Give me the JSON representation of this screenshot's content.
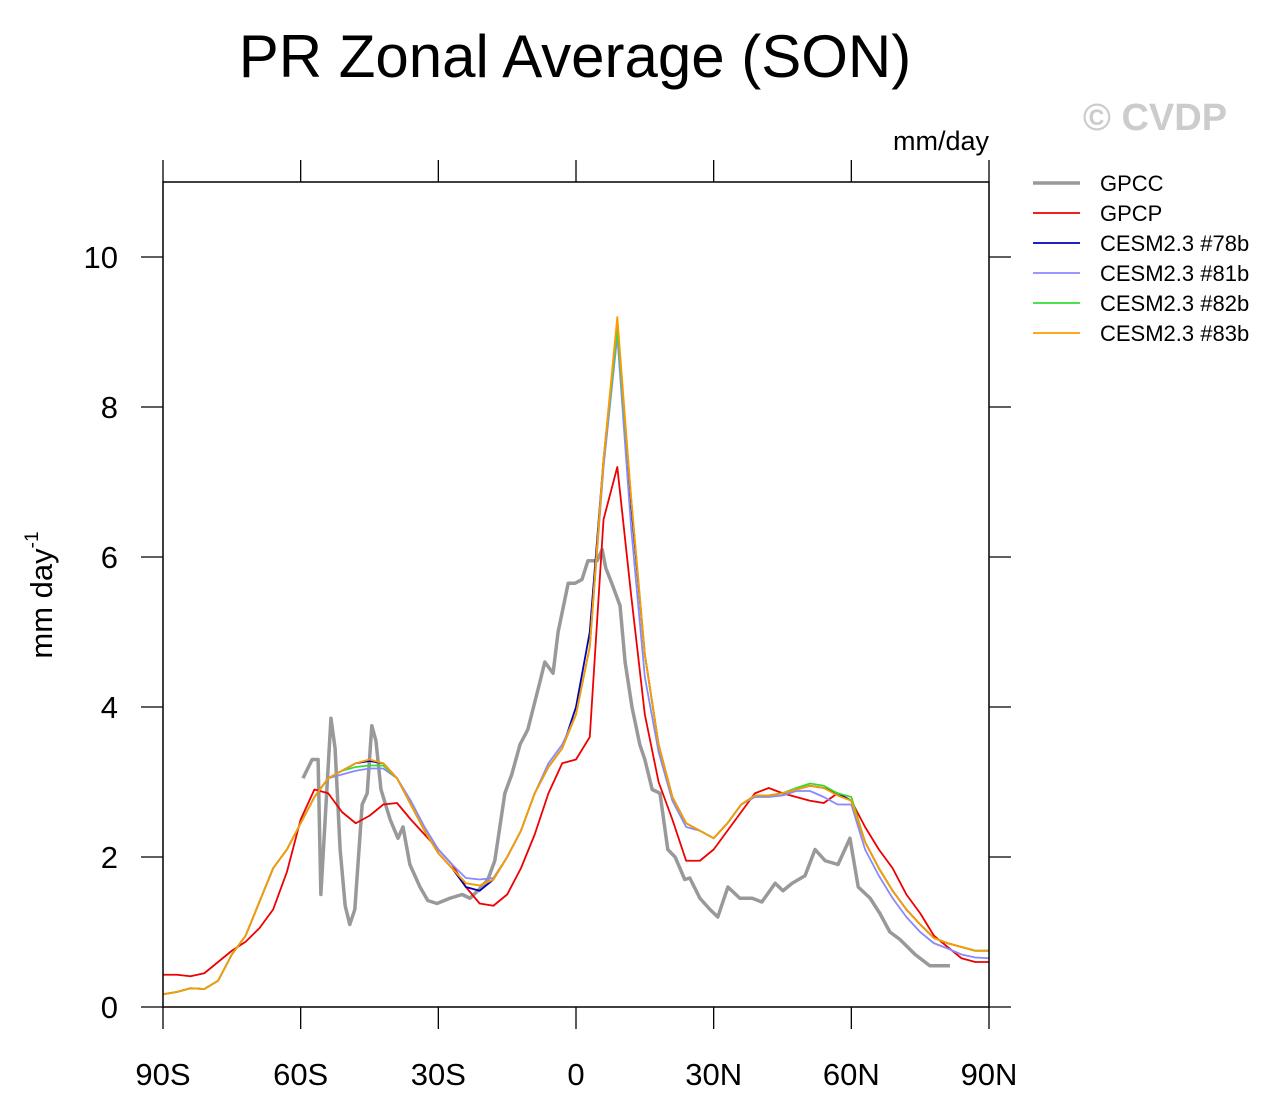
{
  "chart_data": {
    "type": "line",
    "title": "PR Zonal Average (SON)",
    "watermark": "© CVDP",
    "units_label": "mm/day",
    "y_label": "mm day",
    "y_label_exponent": "-1",
    "x": [
      -90,
      -87,
      -84,
      -81,
      -78,
      -75,
      -72,
      -69,
      -66,
      -63,
      -60,
      -57,
      -54,
      -51,
      -48,
      -45,
      -42,
      -39,
      -36,
      -33,
      -30,
      -27,
      -24,
      -21,
      -18,
      -15,
      -12,
      -9,
      -6,
      -3,
      0,
      3,
      6,
      9,
      12,
      15,
      18,
      21,
      24,
      27,
      30,
      33,
      36,
      39,
      42,
      45,
      48,
      51,
      54,
      57,
      60,
      63,
      66,
      69,
      72,
      75,
      78,
      81,
      84,
      87,
      90
    ],
    "xlim": [
      -90,
      90
    ],
    "xticks": [
      {
        "value": -90,
        "label": "90S"
      },
      {
        "value": -60,
        "label": "60S"
      },
      {
        "value": -30,
        "label": "30S"
      },
      0,
      {
        "value": 30,
        "label": "30N"
      },
      {
        "value": 60,
        "label": "60N"
      },
      {
        "value": 90,
        "label": "90N"
      }
    ],
    "ylim": [
      0,
      11
    ],
    "yticks": [
      0,
      2,
      4,
      6,
      8,
      10
    ],
    "series": [
      {
        "name": "GPCC",
        "color": "#999999",
        "width": 3.5,
        "x": [
          -59.5,
          -57.5,
          -56.2,
          -55.6,
          -53.4,
          -52.5,
          -51.4,
          -50.3,
          -49.3,
          -48.2,
          -46.6,
          -45.5,
          -44.5,
          -43.6,
          -42.5,
          -40.5,
          -38.8,
          -37.7,
          -36.2,
          -34,
          -32.3,
          -30.3,
          -27.5,
          -24.8,
          -23.1,
          -21.4,
          -19.2,
          -17.7,
          -15.5,
          -14,
          -12.2,
          -10.5,
          -7.8,
          -6.8,
          -5,
          -3.9,
          -1.7,
          -0.2,
          1.3,
          2.6,
          4.6,
          5.7,
          6.5,
          7.8,
          9.6,
          10.7,
          12.2,
          13.9,
          15,
          16.6,
          18.3,
          20,
          21.6,
          23.7,
          24.8,
          27,
          29.2,
          30.9,
          33.1,
          35.7,
          38.4,
          40.5,
          43.4,
          45.1,
          47.1,
          49.9,
          52.1,
          54.3,
          57.1,
          59.7,
          61.5,
          64.1,
          66.2,
          68.4,
          70.6,
          73.9,
          77.1,
          79.3,
          81.5
        ],
        "values": [
          3.05,
          3.3,
          3.3,
          1.5,
          3.85,
          3.45,
          2.1,
          1.35,
          1.1,
          1.3,
          2.7,
          2.85,
          3.75,
          3.55,
          2.9,
          2.5,
          2.25,
          2.4,
          1.9,
          1.6,
          1.42,
          1.38,
          1.45,
          1.5,
          1.45,
          1.55,
          1.7,
          1.95,
          2.85,
          3.1,
          3.5,
          3.7,
          4.35,
          4.6,
          4.45,
          5.0,
          5.65,
          5.65,
          5.7,
          5.95,
          5.95,
          6.1,
          5.85,
          5.65,
          5.35,
          4.6,
          4.0,
          3.5,
          3.3,
          2.9,
          2.85,
          2.1,
          2.0,
          1.7,
          1.72,
          1.45,
          1.3,
          1.2,
          1.6,
          1.45,
          1.45,
          1.4,
          1.65,
          1.55,
          1.65,
          1.75,
          2.1,
          1.95,
          1.9,
          2.25,
          1.6,
          1.45,
          1.25,
          1.0,
          0.9,
          0.7,
          0.55,
          0.55,
          0.55
        ]
      },
      {
        "name": "GPCP",
        "color": "#ee0000",
        "width": 1.8,
        "values": [
          0.43,
          0.43,
          0.41,
          0.45,
          0.6,
          0.75,
          0.87,
          1.05,
          1.3,
          1.8,
          2.5,
          2.9,
          2.85,
          2.6,
          2.45,
          2.55,
          2.7,
          2.72,
          2.5,
          2.3,
          2.1,
          1.9,
          1.6,
          1.38,
          1.35,
          1.5,
          1.85,
          2.3,
          2.85,
          3.25,
          3.3,
          3.6,
          6.5,
          7.2,
          5.5,
          3.9,
          3.0,
          2.5,
          1.95,
          1.95,
          2.1,
          2.35,
          2.6,
          2.85,
          2.92,
          2.85,
          2.8,
          2.75,
          2.72,
          2.85,
          2.75,
          2.4,
          2.1,
          1.85,
          1.5,
          1.25,
          0.95,
          0.8,
          0.65,
          0.6,
          0.6
        ]
      },
      {
        "name": "CESM2.3 #78b",
        "color": "#0000bb",
        "width": 1.8,
        "values": [
          0.17,
          0.2,
          0.25,
          0.24,
          0.35,
          0.7,
          0.95,
          1.4,
          1.85,
          2.1,
          2.45,
          2.8,
          3.05,
          3.15,
          3.25,
          3.28,
          3.25,
          3.05,
          2.7,
          2.35,
          2.05,
          1.85,
          1.6,
          1.55,
          1.7,
          2.0,
          2.35,
          2.85,
          3.2,
          3.45,
          4.0,
          5.0,
          7.3,
          9.1,
          6.7,
          4.7,
          3.5,
          2.8,
          2.45,
          2.35,
          2.25,
          2.45,
          2.7,
          2.82,
          2.82,
          2.85,
          2.9,
          2.95,
          2.92,
          2.85,
          2.75,
          2.2,
          1.85,
          1.55,
          1.3,
          1.1,
          0.92,
          0.85,
          0.8,
          0.75,
          0.75
        ]
      },
      {
        "name": "CESM2.3 #81b",
        "color": "#8888ff",
        "width": 1.8,
        "values": [
          0.17,
          0.2,
          0.25,
          0.24,
          0.35,
          0.7,
          0.95,
          1.4,
          1.85,
          2.1,
          2.45,
          2.8,
          3.05,
          3.1,
          3.15,
          3.18,
          3.18,
          3.05,
          2.75,
          2.4,
          2.1,
          1.9,
          1.72,
          1.7,
          1.72,
          2.0,
          2.35,
          2.85,
          3.25,
          3.5,
          3.9,
          4.8,
          7.2,
          8.95,
          6.4,
          4.4,
          3.4,
          2.75,
          2.4,
          2.35,
          2.25,
          2.45,
          2.7,
          2.8,
          2.8,
          2.82,
          2.88,
          2.88,
          2.8,
          2.7,
          2.7,
          2.1,
          1.75,
          1.45,
          1.2,
          1.0,
          0.85,
          0.78,
          0.7,
          0.66,
          0.65
        ]
      },
      {
        "name": "CESM2.3 #82b",
        "color": "#33dd33",
        "width": 1.8,
        "values": [
          0.17,
          0.2,
          0.25,
          0.24,
          0.35,
          0.7,
          0.95,
          1.4,
          1.85,
          2.1,
          2.45,
          2.8,
          3.05,
          3.15,
          3.2,
          3.22,
          3.22,
          3.05,
          2.7,
          2.35,
          2.05,
          1.85,
          1.65,
          1.62,
          1.7,
          2.0,
          2.35,
          2.85,
          3.2,
          3.45,
          3.9,
          4.8,
          7.3,
          9.05,
          6.8,
          4.7,
          3.5,
          2.8,
          2.45,
          2.35,
          2.25,
          2.45,
          2.7,
          2.82,
          2.82,
          2.85,
          2.92,
          2.98,
          2.95,
          2.85,
          2.8,
          2.2,
          1.85,
          1.55,
          1.3,
          1.1,
          0.92,
          0.85,
          0.8,
          0.75,
          0.75
        ]
      },
      {
        "name": "CESM2.3 #83b",
        "color": "#ff9900",
        "width": 1.8,
        "values": [
          0.17,
          0.2,
          0.25,
          0.24,
          0.35,
          0.7,
          0.95,
          1.4,
          1.85,
          2.1,
          2.45,
          2.8,
          3.05,
          3.15,
          3.25,
          3.3,
          3.25,
          3.05,
          2.7,
          2.35,
          2.05,
          1.85,
          1.65,
          1.62,
          1.7,
          2.0,
          2.35,
          2.85,
          3.2,
          3.45,
          3.9,
          4.8,
          7.3,
          9.2,
          6.8,
          4.7,
          3.5,
          2.8,
          2.45,
          2.35,
          2.25,
          2.45,
          2.7,
          2.82,
          2.82,
          2.85,
          2.9,
          2.95,
          2.92,
          2.82,
          2.75,
          2.2,
          1.85,
          1.55,
          1.3,
          1.1,
          0.92,
          0.85,
          0.8,
          0.75,
          0.75
        ]
      }
    ]
  }
}
